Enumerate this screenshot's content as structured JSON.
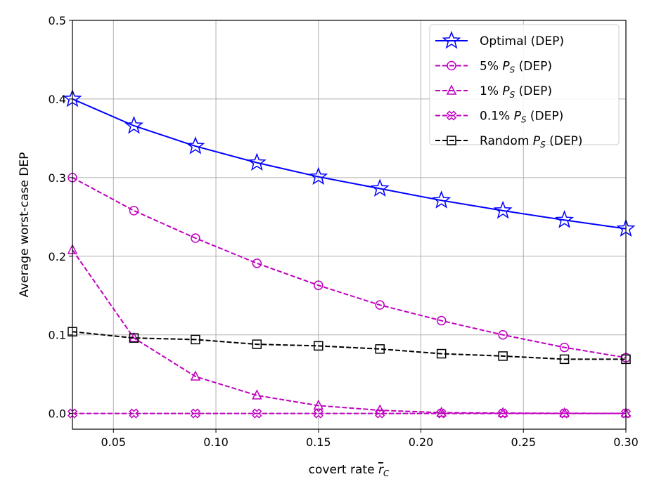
{
  "chart_data": {
    "type": "line",
    "title": "",
    "xlabel": {
      "prefix": "covert rate ",
      "var": "r",
      "sub": "C"
    },
    "ylabel": "Average worst-case DEP",
    "xlim": [
      0.03,
      0.3
    ],
    "ylim": [
      -0.02,
      0.5
    ],
    "xticks": [
      "0.05",
      "0.10",
      "0.15",
      "0.20",
      "0.25",
      "0.30"
    ],
    "xtick_values": [
      0.05,
      0.1,
      0.15,
      0.2,
      0.25,
      0.3
    ],
    "yticks": [
      "0.0",
      "0.1",
      "0.2",
      "0.3",
      "0.4",
      "0.5"
    ],
    "ytick_values": [
      0,
      0.1,
      0.2,
      0.3,
      0.4,
      0.5
    ],
    "grid": true,
    "legend_placement": "top-right",
    "x": [
      0.03,
      0.06,
      0.09,
      0.12,
      0.15,
      0.18,
      0.21,
      0.24,
      0.27,
      0.3
    ],
    "series": [
      {
        "name": {
          "prefix": "Optimal (DEP)",
          "var": "",
          "sub": "",
          "suffix": ""
        },
        "color": "#0000ff",
        "dash": "solid",
        "marker": "star",
        "values": [
          0.4,
          0.366,
          0.34,
          0.319,
          0.301,
          0.286,
          0.271,
          0.258,
          0.246,
          0.235
        ]
      },
      {
        "name": {
          "prefix": "5% ",
          "var": "P",
          "sub": "S",
          "suffix": " (DEP)"
        },
        "color": "#bf00bf",
        "dash": "dashed",
        "marker": "circle",
        "values": [
          0.3,
          0.258,
          0.223,
          0.191,
          0.163,
          0.138,
          0.118,
          0.1,
          0.084,
          0.071
        ]
      },
      {
        "name": {
          "prefix": "1% ",
          "var": "P",
          "sub": "S",
          "suffix": " (DEP)"
        },
        "color": "#bf00bf",
        "dash": "dashed",
        "marker": "triangle",
        "values": [
          0.208,
          0.096,
          0.047,
          0.023,
          0.01,
          0.004,
          0.001,
          0.0005,
          0.0002,
          0.0001
        ]
      },
      {
        "name": {
          "prefix": "0.1% ",
          "var": "P",
          "sub": "S",
          "suffix": " (DEP)"
        },
        "color": "#bf00bf",
        "dash": "dashed",
        "marker": "x-filled",
        "values": [
          0,
          0,
          0,
          0,
          0,
          0,
          0,
          0,
          0,
          0
        ]
      },
      {
        "name": {
          "prefix": "Random ",
          "var": "P",
          "sub": "S",
          "suffix": " (DEP)"
        },
        "color": "#000000",
        "dash": "dashed",
        "marker": "square",
        "values": [
          0.104,
          0.096,
          0.094,
          0.088,
          0.086,
          0.082,
          0.076,
          0.073,
          0.069,
          0.069
        ]
      }
    ]
  }
}
